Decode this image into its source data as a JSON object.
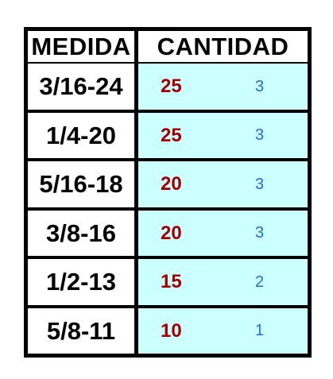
{
  "table": {
    "headers": {
      "medida": "MEDIDA",
      "cantidad": "CANTIDAD"
    },
    "rows": [
      {
        "medida": "3/16-24",
        "cantidad": "25",
        "sub": "3"
      },
      {
        "medida": "1/4-20",
        "cantidad": "25",
        "sub": "3"
      },
      {
        "medida": "5/16-18",
        "cantidad": "20",
        "sub": "3"
      },
      {
        "medida": "3/8-16",
        "cantidad": "20",
        "sub": "3"
      },
      {
        "medida": "1/2-13",
        "cantidad": "15",
        "sub": "2"
      },
      {
        "medida": "5/8-11",
        "cantidad": "10",
        "sub": "1"
      }
    ]
  },
  "colors": {
    "grid": "#000000",
    "cantidad_bg": "#ccffff",
    "cantidad_text": "#a50000",
    "sub_text": "#1f6fd1"
  }
}
